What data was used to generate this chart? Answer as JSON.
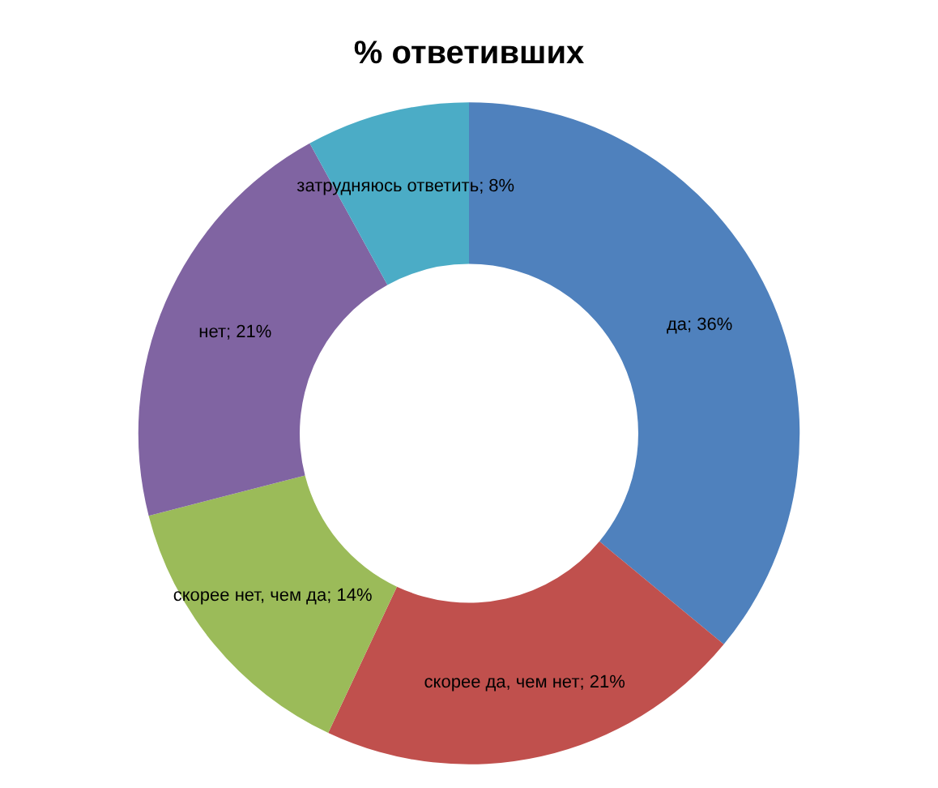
{
  "chart_data": {
    "type": "donut",
    "title": "% ответивших",
    "categories": [
      "да",
      "скорее да, чем нет",
      "скорее нет, чем да",
      "нет",
      "затрудняюсь ответить"
    ],
    "values": [
      36,
      21,
      14,
      21,
      8
    ],
    "colors": [
      "#4f81bd",
      "#c0504d",
      "#9bbb59",
      "#8064a2",
      "#4bacc6"
    ],
    "value_labels": [
      "36%",
      "21%",
      "14%",
      "21%",
      "8%"
    ],
    "legend": false
  }
}
